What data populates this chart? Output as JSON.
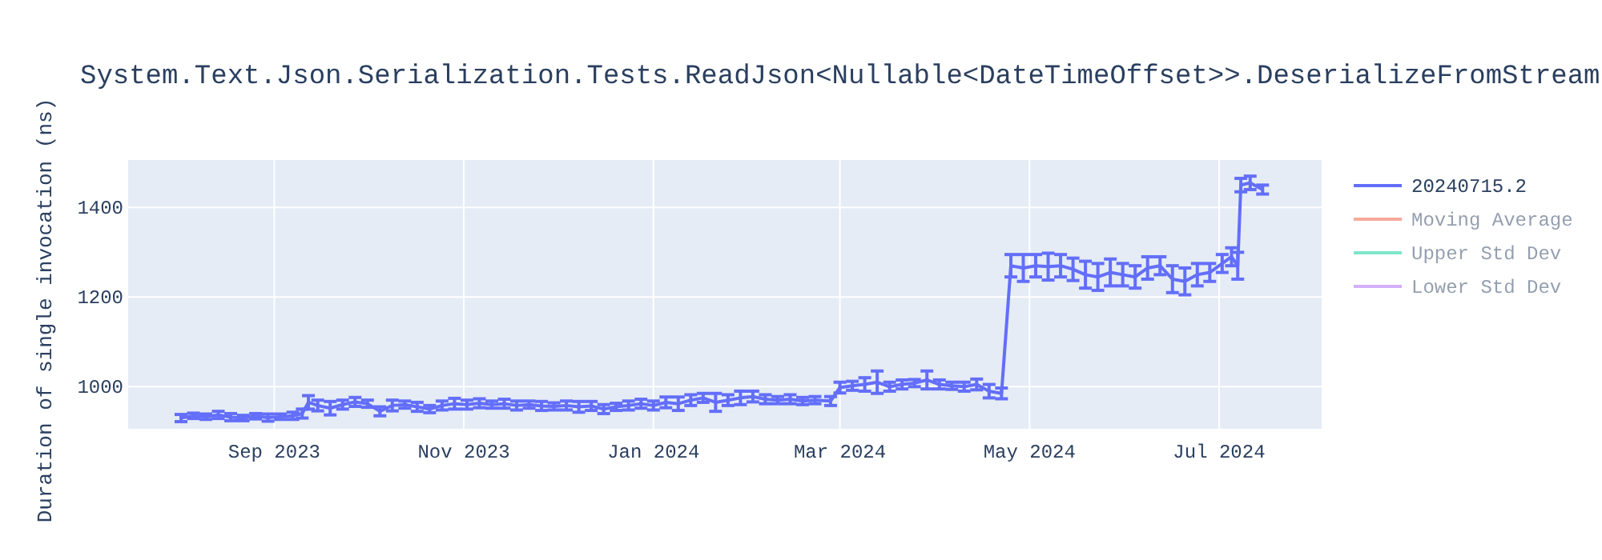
{
  "chart_data": {
    "type": "line",
    "title": "System.Text.Json.Serialization.Tests.ReadJson<Nullable<DateTimeOffset>>.DeserializeFromStream",
    "ylabel": "Duration of single invocation (ns)",
    "xlim": [
      "2023-07-16",
      "2024-08-03"
    ],
    "xticks": [
      {
        "value": "2023-09-01",
        "label": "Sep 2023"
      },
      {
        "value": "2023-11-01",
        "label": "Nov 2023"
      },
      {
        "value": "2024-01-01",
        "label": "Jan 2024"
      },
      {
        "value": "2024-03-01",
        "label": "Mar 2024"
      },
      {
        "value": "2024-05-01",
        "label": "May 2024"
      },
      {
        "value": "2024-07-01",
        "label": "Jul 2024"
      }
    ],
    "ylim": [
      906,
      1506
    ],
    "yticks": [
      1000,
      1200,
      1400
    ],
    "grid": true,
    "legend": "top right",
    "series": [
      {
        "name": "20240715.2",
        "color": "#636efa",
        "x": [
          "2023-08-02",
          "2023-08-06",
          "2023-08-10",
          "2023-08-14",
          "2023-08-18",
          "2023-08-22",
          "2023-08-26",
          "2023-08-30",
          "2023-09-03",
          "2023-09-07",
          "2023-09-10",
          "2023-09-12",
          "2023-09-15",
          "2023-09-19",
          "2023-09-23",
          "2023-09-27",
          "2023-10-01",
          "2023-10-05",
          "2023-10-09",
          "2023-10-13",
          "2023-10-17",
          "2023-10-21",
          "2023-10-25",
          "2023-10-29",
          "2023-11-02",
          "2023-11-06",
          "2023-11-10",
          "2023-11-14",
          "2023-11-18",
          "2023-11-22",
          "2023-11-26",
          "2023-11-30",
          "2023-12-04",
          "2023-12-08",
          "2023-12-12",
          "2023-12-16",
          "2023-12-20",
          "2023-12-24",
          "2023-12-28",
          "2024-01-01",
          "2024-01-05",
          "2024-01-09",
          "2024-01-13",
          "2024-01-17",
          "2024-01-21",
          "2024-01-25",
          "2024-01-29",
          "2024-02-02",
          "2024-02-06",
          "2024-02-10",
          "2024-02-14",
          "2024-02-18",
          "2024-02-22",
          "2024-02-27",
          "2024-03-01",
          "2024-03-05",
          "2024-03-09",
          "2024-03-13",
          "2024-03-17",
          "2024-03-21",
          "2024-03-25",
          "2024-03-29",
          "2024-04-02",
          "2024-04-06",
          "2024-04-10",
          "2024-04-14",
          "2024-04-18",
          "2024-04-22",
          "2024-04-25",
          "2024-04-29",
          "2024-05-03",
          "2024-05-07",
          "2024-05-11",
          "2024-05-15",
          "2024-05-19",
          "2024-05-23",
          "2024-05-27",
          "2024-05-31",
          "2024-06-04",
          "2024-06-08",
          "2024-06-12",
          "2024-06-16",
          "2024-06-20",
          "2024-06-24",
          "2024-06-28",
          "2024-07-02",
          "2024-07-05",
          "2024-07-07",
          "2024-07-08",
          "2024-07-11",
          "2024-07-15"
        ],
        "values": [
          930,
          935,
          933,
          937,
          932,
          930,
          934,
          931,
          933,
          935,
          940,
          965,
          958,
          952,
          960,
          966,
          962,
          945,
          958,
          960,
          955,
          950,
          958,
          962,
          960,
          963,
          960,
          962,
          958,
          960,
          957,
          956,
          958,
          955,
          957,
          950,
          955,
          958,
          962,
          958,
          965,
          962,
          970,
          975,
          965,
          970,
          975,
          978,
          972,
          970,
          972,
          968,
          970,
          968,
          998,
          1002,
          1005,
          1010,
          1000,
          1005,
          1008,
          1015,
          1005,
          1002,
          1000,
          1005,
          990,
          985,
          1270,
          1265,
          1270,
          1268,
          1270,
          1262,
          1250,
          1245,
          1255,
          1250,
          1245,
          1265,
          1270,
          1240,
          1235,
          1250,
          1255,
          1275,
          1290,
          1270,
          1450,
          1455,
          1440
        ],
        "errors": [
          8,
          6,
          6,
          8,
          8,
          6,
          6,
          8,
          6,
          8,
          10,
          15,
          12,
          15,
          10,
          10,
          8,
          10,
          12,
          8,
          10,
          8,
          10,
          12,
          10,
          10,
          8,
          10,
          10,
          8,
          10,
          8,
          10,
          12,
          10,
          10,
          8,
          10,
          10,
          10,
          12,
          15,
          12,
          10,
          20,
          12,
          15,
          12,
          10,
          8,
          10,
          8,
          8,
          10,
          12,
          10,
          15,
          25,
          10,
          10,
          8,
          20,
          10,
          8,
          10,
          12,
          15,
          12,
          25,
          30,
          25,
          30,
          25,
          25,
          30,
          30,
          30,
          25,
          25,
          25,
          20,
          30,
          30,
          25,
          20,
          20,
          20,
          30,
          15,
          15,
          10
        ]
      },
      {
        "name": "Moving Average",
        "color": "#ef553b"
      },
      {
        "name": "Upper Std Dev",
        "color": "#00cc96"
      },
      {
        "name": "Lower Std Dev",
        "color": "#ab63fa"
      }
    ]
  }
}
